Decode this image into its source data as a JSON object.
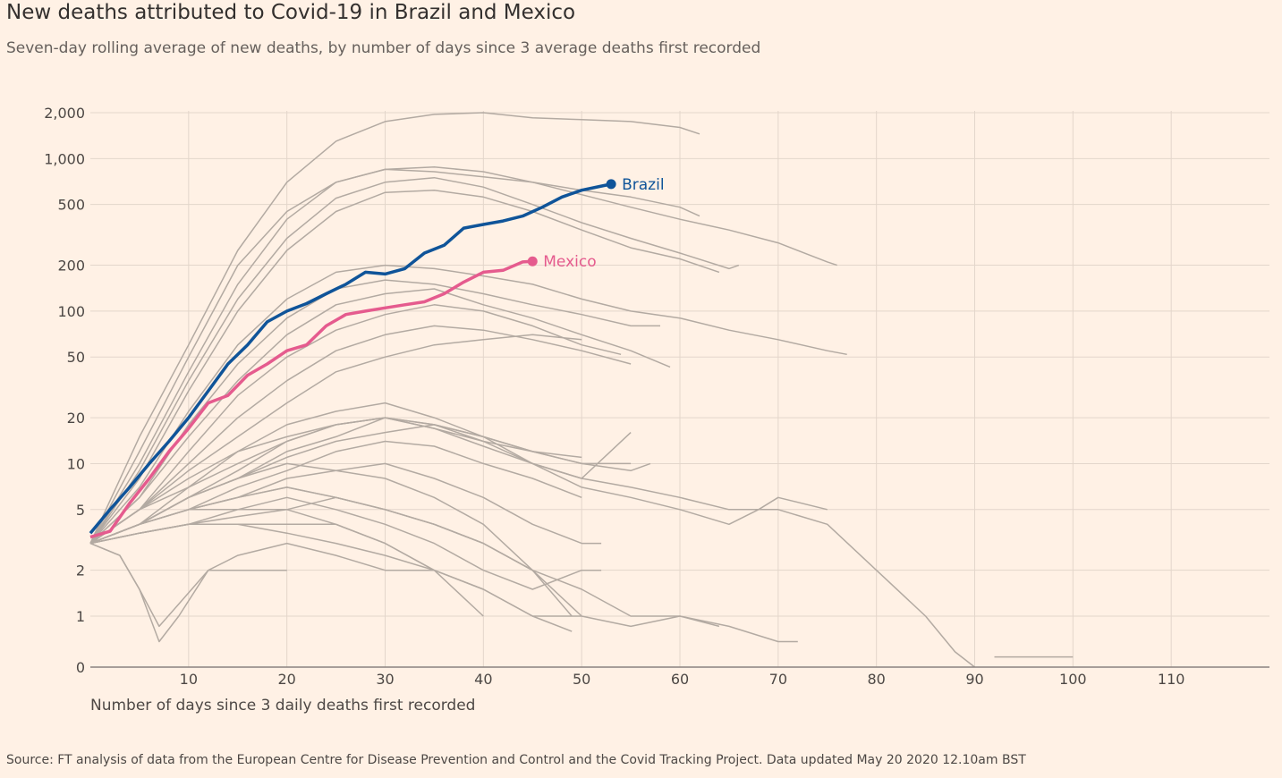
{
  "chart_data": {
    "type": "line",
    "title": "New deaths attributed to Covid-19 in Brazil and Mexico",
    "subtitle": "Seven-day rolling average of new deaths, by number of days since 3 average deaths first recorded",
    "xlabel": "Number of days since 3 daily deaths first recorded",
    "ylabel": "",
    "source": "Source: FT analysis of data from the European Centre for Disease Prevention and Control and the Covid Tracking Project. Data updated May 20 2020 12.10am BST",
    "y_scale": "log",
    "xlim": [
      0,
      120
    ],
    "x_ticks": [
      10,
      20,
      30,
      40,
      50,
      60,
      70,
      80,
      90,
      100,
      110
    ],
    "x_tick_labels": [
      "10",
      "20",
      "30",
      "40",
      "50",
      "60",
      "70",
      "80",
      "90",
      "100",
      "110"
    ],
    "y_ticks": [
      0,
      1,
      2,
      5,
      10,
      20,
      50,
      100,
      200,
      500,
      1000,
      2000
    ],
    "y_tick_labels": [
      "0",
      "1",
      "2",
      "5",
      "10",
      "20",
      "50",
      "100",
      "200",
      "500",
      "1,000",
      "2,000"
    ],
    "grid": true,
    "colors": {
      "background": "#fff1e5",
      "grid": "#e3d6cb",
      "axis": "#8a8380",
      "other_countries": "#b3aaa2",
      "brazil": "#0f5499",
      "mexico": "#e55b8e"
    },
    "highlight_series": [
      {
        "name": "Brazil",
        "color": "#0f5499",
        "x": [
          0,
          2,
          4,
          6,
          8,
          10,
          12,
          14,
          16,
          18,
          20,
          22,
          24,
          26,
          28,
          30,
          32,
          34,
          36,
          38,
          40,
          42,
          44,
          46,
          48,
          50,
          52,
          53
        ],
        "y": [
          3.5,
          5,
          7,
          10,
          14,
          20,
          30,
          45,
          60,
          85,
          100,
          112,
          130,
          150,
          180,
          175,
          190,
          240,
          270,
          350,
          370,
          390,
          420,
          480,
          560,
          620,
          660,
          680
        ]
      },
      {
        "name": "Mexico",
        "color": "#e55b8e",
        "x": [
          0,
          2,
          4,
          6,
          8,
          10,
          12,
          14,
          16,
          18,
          20,
          22,
          24,
          26,
          28,
          30,
          32,
          34,
          36,
          38,
          40,
          42,
          44,
          45
        ],
        "y": [
          3.3,
          3.6,
          5.5,
          8,
          12,
          17,
          25,
          28,
          38,
          45,
          55,
          60,
          80,
          95,
          100,
          105,
          110,
          115,
          130,
          155,
          180,
          185,
          210,
          212
        ]
      }
    ],
    "other_series": [
      {
        "x": [
          0,
          5,
          10,
          15,
          20,
          25,
          30,
          35,
          40,
          45,
          50,
          55,
          60,
          62
        ],
        "y": [
          3,
          15,
          60,
          250,
          700,
          1300,
          1750,
          1950,
          2000,
          1850,
          1800,
          1750,
          1600,
          1450
        ]
      },
      {
        "x": [
          0,
          5,
          10,
          15,
          20,
          25,
          30,
          35,
          40,
          45,
          50,
          55,
          60,
          62
        ],
        "y": [
          3,
          12,
          50,
          200,
          450,
          700,
          850,
          820,
          760,
          700,
          620,
          560,
          480,
          420
        ]
      },
      {
        "x": [
          0,
          5,
          10,
          15,
          20,
          25,
          30,
          35,
          40,
          45,
          50,
          55,
          60,
          65,
          70,
          75,
          76
        ],
        "y": [
          3,
          10,
          40,
          150,
          400,
          700,
          850,
          880,
          820,
          700,
          580,
          480,
          400,
          340,
          280,
          210,
          200
        ]
      },
      {
        "x": [
          0,
          5,
          10,
          15,
          20,
          25,
          30,
          35,
          40,
          45,
          50,
          55,
          60,
          65,
          66
        ],
        "y": [
          3,
          9,
          35,
          120,
          300,
          550,
          700,
          750,
          650,
          500,
          380,
          300,
          240,
          190,
          200
        ]
      },
      {
        "x": [
          0,
          5,
          10,
          15,
          20,
          25,
          30,
          35,
          40,
          45,
          50,
          55,
          60,
          64
        ],
        "y": [
          3,
          8,
          30,
          100,
          250,
          450,
          600,
          620,
          560,
          450,
          340,
          260,
          220,
          180
        ]
      },
      {
        "x": [
          0,
          5,
          10,
          15,
          20,
          25,
          30,
          35,
          40,
          45,
          50,
          55,
          60,
          65,
          70,
          75,
          77
        ],
        "y": [
          3,
          7,
          22,
          60,
          120,
          180,
          200,
          190,
          170,
          150,
          120,
          100,
          90,
          75,
          65,
          55,
          52
        ]
      },
      {
        "x": [
          0,
          5,
          10,
          15,
          20,
          25,
          30,
          35,
          40,
          45,
          50,
          55,
          58
        ],
        "y": [
          3,
          6,
          18,
          45,
          90,
          140,
          160,
          150,
          130,
          110,
          95,
          80,
          80
        ]
      },
      {
        "x": [
          0,
          5,
          10,
          15,
          20,
          25,
          30,
          35,
          40,
          45,
          50,
          55,
          59
        ],
        "y": [
          3,
          6,
          15,
          35,
          70,
          110,
          130,
          140,
          110,
          90,
          70,
          55,
          43
        ]
      },
      {
        "x": [
          0,
          5,
          10,
          15,
          20,
          25,
          30,
          35,
          40,
          45,
          50,
          54
        ],
        "y": [
          3,
          5,
          12,
          28,
          50,
          75,
          95,
          110,
          100,
          80,
          60,
          52
        ]
      },
      {
        "x": [
          0,
          5,
          10,
          15,
          20,
          25,
          30,
          35,
          40,
          45,
          50,
          55
        ],
        "y": [
          3,
          5,
          10,
          20,
          35,
          55,
          70,
          80,
          75,
          65,
          55,
          45
        ]
      },
      {
        "x": [
          0,
          5,
          10,
          15,
          20,
          25,
          30,
          35,
          40,
          45,
          50
        ],
        "y": [
          3,
          5,
          9,
          15,
          25,
          40,
          50,
          60,
          65,
          70,
          65
        ]
      },
      {
        "x": [
          0,
          5,
          10,
          15,
          20,
          25,
          30,
          35,
          40,
          45,
          50,
          55,
          60,
          65,
          70,
          75,
          80,
          85,
          88,
          90
        ],
        "y": [
          3,
          4,
          6,
          8,
          12,
          15,
          20,
          18,
          15,
          10,
          8,
          7,
          6,
          5,
          5,
          4,
          2,
          1,
          0.3,
          0
        ]
      },
      {
        "x": [
          92,
          95,
          100
        ],
        "y": [
          0.2,
          0.2,
          0.2
        ]
      },
      {
        "x": [
          0,
          5,
          10,
          15,
          20,
          25,
          30,
          35,
          40,
          45,
          50,
          55,
          57
        ],
        "y": [
          3,
          4,
          7,
          12,
          18,
          22,
          25,
          20,
          15,
          12,
          10,
          9,
          10
        ]
      },
      {
        "x": [
          0,
          5,
          10,
          15,
          20,
          25,
          30,
          35,
          40,
          45,
          50,
          55
        ],
        "y": [
          3,
          4,
          6,
          9,
          14,
          18,
          20,
          17,
          13,
          10,
          8,
          16
        ]
      },
      {
        "x": [
          0,
          5,
          10,
          15,
          20,
          25,
          30,
          35,
          40,
          45,
          50
        ],
        "y": [
          3,
          4,
          5,
          7,
          9,
          12,
          14,
          13,
          10,
          8,
          6
        ]
      },
      {
        "x": [
          0,
          5,
          10,
          15,
          20,
          25,
          30,
          35,
          40,
          45,
          50,
          52
        ],
        "y": [
          3,
          4,
          5,
          6,
          8,
          9,
          10,
          8,
          6,
          4,
          3,
          3
        ]
      },
      {
        "x": [
          0,
          5,
          10,
          15,
          20,
          25,
          30,
          35,
          40,
          45,
          49
        ],
        "y": [
          3,
          3.5,
          4,
          5,
          5,
          6,
          5,
          4,
          3,
          2,
          1
        ]
      },
      {
        "x": [
          0,
          5,
          10,
          15,
          20,
          25,
          30,
          35,
          40,
          45,
          49
        ],
        "y": [
          3,
          3.5,
          4,
          4,
          4,
          4,
          3,
          2,
          1.5,
          1,
          0.7
        ]
      },
      {
        "x": [
          0,
          3,
          5,
          7,
          9,
          12,
          15,
          20,
          25,
          30,
          35
        ],
        "y": [
          3,
          2.5,
          1.5,
          0.8,
          1.2,
          2,
          2.5,
          3,
          2.5,
          2,
          2
        ]
      },
      {
        "x": [
          0,
          3,
          5,
          7,
          9,
          12,
          15,
          20
        ],
        "y": [
          3,
          2.5,
          1.5,
          0.5,
          1,
          2,
          2,
          2
        ]
      },
      {
        "x": [
          0,
          5,
          10,
          15,
          20,
          25,
          30,
          35,
          40,
          45,
          50,
          55,
          60,
          65,
          70,
          72
        ],
        "y": [
          3,
          4,
          5,
          6,
          7,
          6,
          5,
          4,
          3,
          2,
          1.5,
          1,
          1,
          0.8,
          0.5,
          0.5
        ]
      },
      {
        "x": [
          0,
          5,
          10,
          15,
          20,
          25,
          30,
          35,
          40,
          45,
          50,
          55,
          60,
          64
        ],
        "y": [
          3,
          4,
          6,
          8,
          10,
          9,
          8,
          6,
          4,
          2,
          1,
          0.8,
          1,
          0.8
        ]
      },
      {
        "x": [
          0,
          5,
          10,
          15,
          20,
          25,
          30,
          35,
          40,
          45,
          50,
          55,
          60,
          65,
          68,
          70,
          75
        ],
        "y": [
          3,
          5,
          8,
          12,
          15,
          18,
          20,
          18,
          14,
          10,
          7,
          6,
          5,
          4,
          5,
          6,
          5
        ]
      },
      {
        "x": [
          0,
          5,
          10,
          15,
          20,
          25,
          30,
          35,
          40,
          45,
          50,
          52
        ],
        "y": [
          3,
          4,
          5,
          5,
          6,
          5,
          4,
          3,
          2,
          1.5,
          2,
          2
        ]
      },
      {
        "x": [
          0,
          5,
          10,
          15,
          20,
          25,
          30,
          35,
          40
        ],
        "y": [
          3,
          3.5,
          4,
          4.5,
          5,
          4,
          3,
          2,
          1
        ]
      },
      {
        "x": [
          0,
          5,
          10,
          15,
          20,
          25,
          30,
          35,
          40,
          45,
          50
        ],
        "y": [
          3,
          5,
          7,
          10,
          14,
          18,
          20,
          17,
          14,
          12,
          11
        ]
      },
      {
        "x": [
          0,
          5,
          10,
          15,
          20,
          25,
          30,
          35,
          40,
          45,
          50,
          55
        ],
        "y": [
          3,
          4,
          6,
          8,
          11,
          14,
          16,
          18,
          15,
          12,
          10,
          10
        ]
      },
      {
        "x": [
          0,
          5,
          10,
          15,
          20,
          25,
          30,
          35,
          40,
          45
        ],
        "y": [
          3,
          4,
          5,
          6,
          7,
          6,
          5,
          4,
          3,
          2
        ]
      },
      {
        "x": [
          0,
          5,
          10,
          15,
          20,
          25,
          30,
          35,
          40,
          45,
          50
        ],
        "y": [
          3,
          3.5,
          4,
          4,
          3.5,
          3,
          2.5,
          2,
          1.5,
          1,
          1
        ]
      }
    ],
    "annotations": [
      {
        "text": "Brazil",
        "series": "Brazil"
      },
      {
        "text": "Mexico",
        "series": "Mexico"
      }
    ]
  }
}
